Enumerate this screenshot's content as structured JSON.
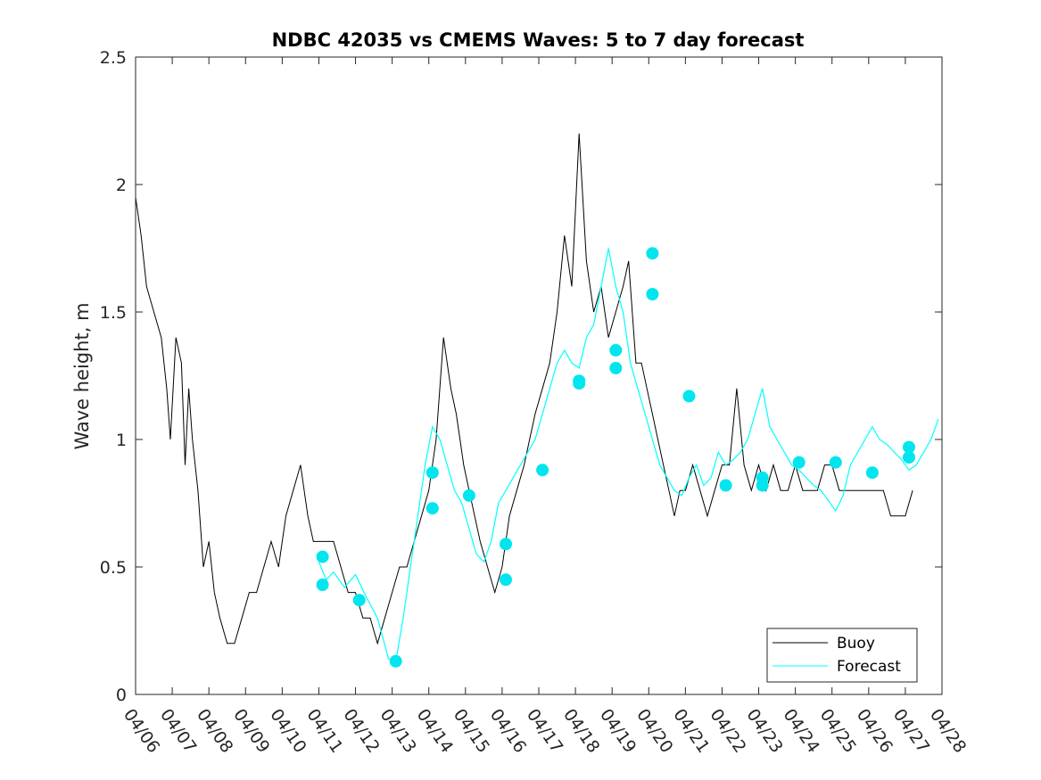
{
  "chart_data": {
    "type": "line",
    "title": "NDBC 42035 vs CMEMS Waves: 5 to 7 day forecast",
    "xlabel": "",
    "ylabel": "Wave height, m",
    "xlim": [
      0,
      22
    ],
    "ylim": [
      0,
      2.5
    ],
    "x_tick_labels": [
      "04/06",
      "04/07",
      "04/08",
      "04/09",
      "04/10",
      "04/11",
      "04/12",
      "04/13",
      "04/14",
      "04/15",
      "04/16",
      "04/17",
      "04/18",
      "04/19",
      "04/20",
      "04/21",
      "04/22",
      "04/23",
      "04/24",
      "04/25",
      "04/26",
      "04/27",
      "04/28"
    ],
    "y_ticks": [
      0,
      0.5,
      1,
      1.5,
      2,
      2.5
    ],
    "y_tick_labels": [
      "0",
      "0.5",
      "1",
      "1.5",
      "2",
      "2.5"
    ],
    "legend": {
      "placement": "bottom-right",
      "entries": [
        "Buoy",
        "Forecast"
      ]
    },
    "colors": {
      "buoy": "#000000",
      "forecast": "#00ffff",
      "marker": "#00e5ee"
    },
    "series": [
      {
        "name": "Buoy",
        "x": [
          0,
          0.15,
          0.3,
          0.5,
          0.7,
          0.85,
          0.95,
          1.1,
          1.25,
          1.35,
          1.45,
          1.55,
          1.7,
          1.85,
          2.0,
          2.15,
          2.3,
          2.5,
          2.7,
          2.9,
          3.1,
          3.3,
          3.5,
          3.7,
          3.9,
          4.1,
          4.3,
          4.5,
          4.7,
          4.85,
          5.0,
          5.2,
          5.4,
          5.6,
          5.8,
          6.0,
          6.2,
          6.4,
          6.6,
          6.8,
          7.0,
          7.2,
          7.4,
          7.6,
          7.8,
          8.0,
          8.2,
          8.4,
          8.6,
          8.75,
          8.85,
          8.95,
          9.1,
          9.25,
          9.4,
          9.6,
          9.8,
          10.0,
          10.2,
          10.4,
          10.6,
          10.75,
          10.9,
          11.1,
          11.3,
          11.5,
          11.7,
          11.9,
          12.1,
          12.3,
          12.5,
          12.7,
          12.9,
          13.1,
          13.3,
          13.45,
          13.55,
          13.65,
          13.8,
          13.95,
          14.1,
          14.25,
          14.4,
          14.55,
          14.7,
          14.85,
          15.0,
          15.2,
          15.4,
          15.6,
          15.8,
          16.0,
          16.2,
          16.4,
          16.6,
          16.8,
          17.0,
          17.2,
          17.4,
          17.6,
          17.8,
          18.0,
          18.2,
          18.4,
          18.6,
          18.8,
          19.0,
          19.2,
          19.4,
          19.6,
          19.8,
          20.0,
          20.2,
          20.4,
          20.6,
          20.8,
          21.0,
          21.2
        ],
        "values": [
          1.95,
          1.8,
          1.6,
          1.5,
          1.4,
          1.2,
          1.0,
          1.4,
          1.3,
          0.9,
          1.2,
          1.0,
          0.8,
          0.5,
          0.6,
          0.4,
          0.3,
          0.2,
          0.2,
          0.3,
          0.4,
          0.4,
          0.5,
          0.6,
          0.5,
          0.7,
          0.8,
          0.9,
          0.7,
          0.6,
          0.6,
          0.6,
          0.6,
          0.5,
          0.4,
          0.4,
          0.3,
          0.3,
          0.2,
          0.3,
          0.4,
          0.5,
          0.5,
          0.6,
          0.7,
          0.8,
          1.0,
          1.4,
          1.2,
          1.1,
          1.0,
          0.9,
          0.8,
          0.7,
          0.6,
          0.5,
          0.4,
          0.5,
          0.7,
          0.8,
          0.9,
          1.0,
          1.1,
          1.2,
          1.3,
          1.5,
          1.8,
          1.6,
          2.2,
          1.7,
          1.5,
          1.6,
          1.4,
          1.5,
          1.6,
          1.7,
          1.5,
          1.3,
          1.3,
          1.2,
          1.1,
          1.0,
          0.9,
          0.8,
          0.7,
          0.8,
          0.8,
          0.9,
          0.8,
          0.7,
          0.8,
          0.9,
          0.9,
          1.2,
          0.9,
          0.8,
          0.9,
          0.8,
          0.9,
          0.8,
          0.8,
          0.9,
          0.8,
          0.8,
          0.8,
          0.9,
          0.9,
          0.8,
          0.8,
          0.8,
          0.8,
          0.8,
          0.8,
          0.8,
          0.7,
          0.7,
          0.7,
          0.8
        ]
      },
      {
        "name": "Forecast",
        "x": [
          5.0,
          5.2,
          5.4,
          5.7,
          6.0,
          6.3,
          6.6,
          6.9,
          7.1,
          7.3,
          7.5,
          7.7,
          7.9,
          8.1,
          8.3,
          8.5,
          8.7,
          8.9,
          9.1,
          9.3,
          9.5,
          9.7,
          9.9,
          10.1,
          10.3,
          10.5,
          10.7,
          10.9,
          11.1,
          11.3,
          11.5,
          11.7,
          11.9,
          12.1,
          12.3,
          12.5,
          12.7,
          12.9,
          13.1,
          13.3,
          13.5,
          13.7,
          13.9,
          14.1,
          14.3,
          14.5,
          14.7,
          14.9,
          15.1,
          15.3,
          15.5,
          15.7,
          15.9,
          16.1,
          16.3,
          16.5,
          16.7,
          16.9,
          17.1,
          17.3,
          17.5,
          17.7,
          17.9,
          18.1,
          18.3,
          18.5,
          18.7,
          18.9,
          19.1,
          19.3,
          19.5,
          19.7,
          19.9,
          20.1,
          20.3,
          20.5,
          20.7,
          20.9,
          21.1,
          21.3,
          21.5,
          21.7,
          21.9
        ],
        "values": [
          0.52,
          0.45,
          0.48,
          0.42,
          0.47,
          0.38,
          0.3,
          0.14,
          0.13,
          0.3,
          0.5,
          0.7,
          0.9,
          1.05,
          1.0,
          0.9,
          0.8,
          0.75,
          0.65,
          0.55,
          0.52,
          0.6,
          0.75,
          0.8,
          0.85,
          0.9,
          0.95,
          1.0,
          1.1,
          1.2,
          1.3,
          1.35,
          1.3,
          1.28,
          1.4,
          1.45,
          1.6,
          1.75,
          1.6,
          1.5,
          1.3,
          1.2,
          1.1,
          1.0,
          0.9,
          0.85,
          0.8,
          0.78,
          0.85,
          0.9,
          0.82,
          0.85,
          0.95,
          0.9,
          0.92,
          0.95,
          1.0,
          1.1,
          1.2,
          1.05,
          1.0,
          0.95,
          0.9,
          0.88,
          0.85,
          0.82,
          0.8,
          0.76,
          0.72,
          0.78,
          0.9,
          0.95,
          1.0,
          1.05,
          1.0,
          0.98,
          0.95,
          0.92,
          0.88,
          0.9,
          0.95,
          1.0,
          1.08
        ]
      }
    ],
    "forecast_markers": {
      "x": [
        5.1,
        5.1,
        6.1,
        7.1,
        8.1,
        8.1,
        9.1,
        10.1,
        10.1,
        11.1,
        12.1,
        12.1,
        13.1,
        13.1,
        14.1,
        14.1,
        15.1,
        16.1,
        17.1,
        17.1,
        18.1,
        19.1,
        20.1,
        21.1,
        21.1
      ],
      "values": [
        0.54,
        0.43,
        0.37,
        0.13,
        0.87,
        0.73,
        0.78,
        0.59,
        0.45,
        0.88,
        1.23,
        1.22,
        1.35,
        1.28,
        1.73,
        1.57,
        1.17,
        0.82,
        0.85,
        0.82,
        0.91,
        0.91,
        0.87,
        0.97,
        0.93
      ]
    }
  }
}
